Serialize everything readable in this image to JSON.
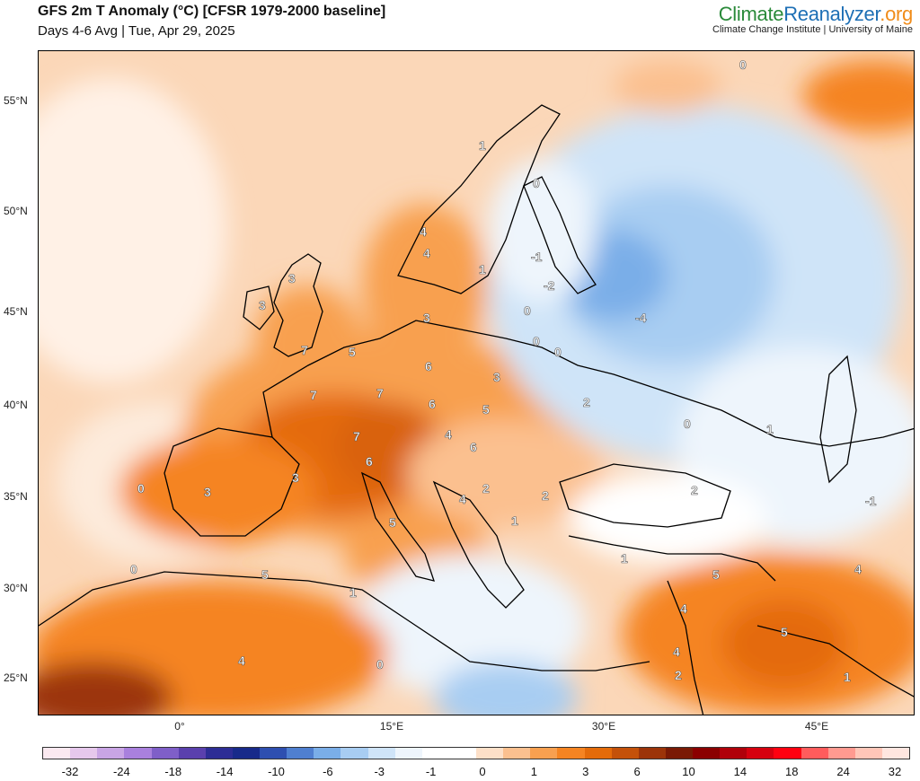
{
  "header": {
    "title": "GFS 2m T Anomaly (°C) [CFSR 1979-2000 baseline]",
    "subtitle": "Days 4-6 Avg | Tue, Apr 29, 2025"
  },
  "brand": {
    "part1": "Climate",
    "part2": "Reanalyzer",
    "part3": ".org",
    "sub": "Climate Change Institute | University of Maine"
  },
  "axes": {
    "lat_labels": [
      "55°N",
      "50°N",
      "45°N",
      "40°N",
      "35°N",
      "30°N",
      "25°N"
    ],
    "lon_labels": [
      "0°",
      "15°E",
      "30°E",
      "45°E"
    ]
  },
  "colorbar": {
    "labels": [
      "-32",
      "-24",
      "-18",
      "-14",
      "-10",
      "-6",
      "-3",
      "-1",
      "0",
      "1",
      "3",
      "6",
      "10",
      "14",
      "18",
      "24",
      "32"
    ],
    "colors": [
      "#fbe9f0",
      "#e6c8ec",
      "#c9a5e5",
      "#a980dd",
      "#7f5fc8",
      "#5a40ad",
      "#2d2d95",
      "#182a8a",
      "#2e4fb0",
      "#4f7fd0",
      "#7aaee8",
      "#a8cdf2",
      "#cfe4f8",
      "#eef5fc",
      "#ffffff",
      "#ffffff",
      "#fde0c8",
      "#fbc08f",
      "#f8a050",
      "#f58422",
      "#e46b0a",
      "#c4510a",
      "#9c3409",
      "#7a1a05",
      "#8b0000",
      "#b0000a",
      "#d6000f",
      "#ff0010",
      "#ff5c5c",
      "#ff9a90",
      "#ffc6b8",
      "#ffe6e0"
    ]
  },
  "map": {
    "contour_labels": [
      "0",
      "1",
      "3",
      "4",
      "3",
      "3",
      "7",
      "5",
      "7",
      "6",
      "7",
      "6",
      "5",
      "7",
      "6",
      "3",
      "4",
      "6",
      "5",
      "4",
      "2",
      "2",
      "1",
      "3",
      "2",
      "0",
      "1",
      "0",
      "-1",
      "-2",
      "-4",
      "0",
      "0",
      "0",
      "3",
      "0",
      "0",
      "2",
      "-1",
      "1",
      "5",
      "5",
      "4",
      "4",
      "4",
      "2",
      "5",
      "4",
      "1",
      "0",
      "1",
      "1",
      "4"
    ]
  }
}
